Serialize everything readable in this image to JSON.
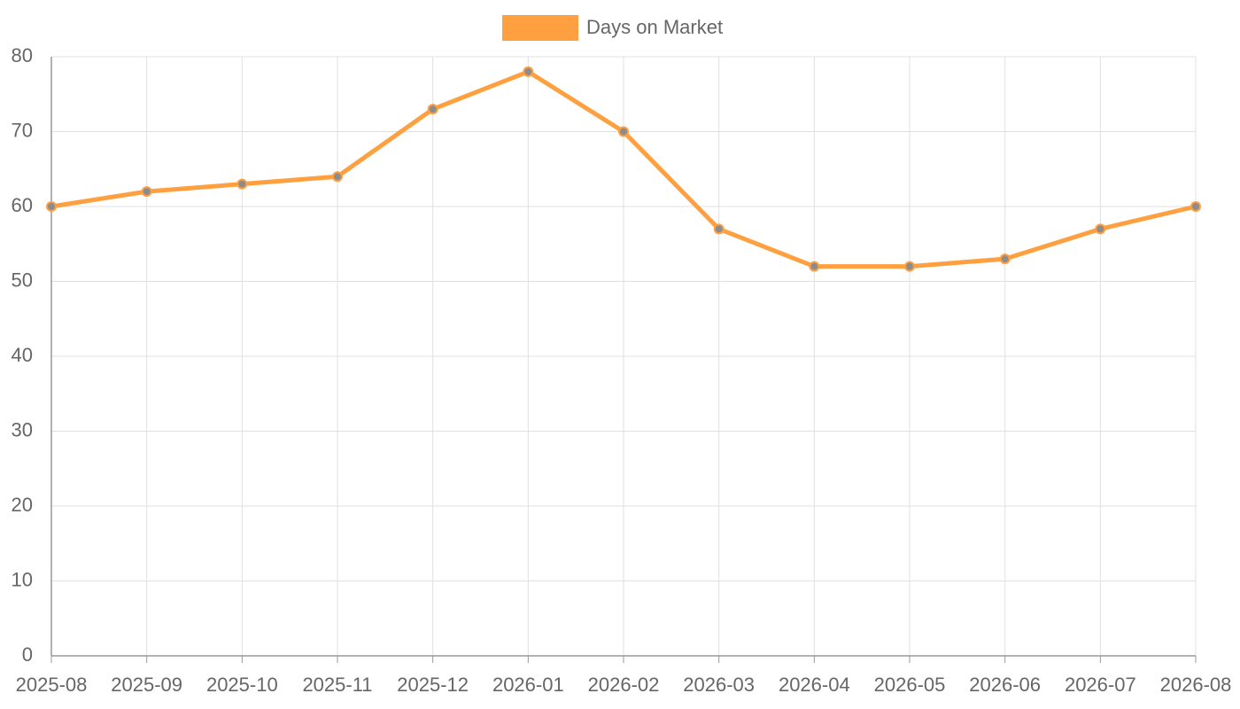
{
  "chart_data": {
    "type": "line",
    "categories": [
      "2025-08",
      "2025-09",
      "2025-10",
      "2025-11",
      "2025-12",
      "2026-01",
      "2026-02",
      "2026-03",
      "2026-04",
      "2026-05",
      "2026-06",
      "2026-07",
      "2026-08"
    ],
    "series": [
      {
        "name": "Days on Market",
        "color": "#ffa040",
        "point_color": "#8c8c8c",
        "values": [
          60,
          62,
          63,
          64,
          73,
          78,
          70,
          57,
          52,
          52,
          53,
          57,
          60
        ]
      }
    ],
    "ylim": [
      0,
      80
    ],
    "yticks": [
      0,
      10,
      20,
      30,
      40,
      50,
      60,
      70,
      80
    ],
    "grid": true,
    "legend": "top"
  }
}
